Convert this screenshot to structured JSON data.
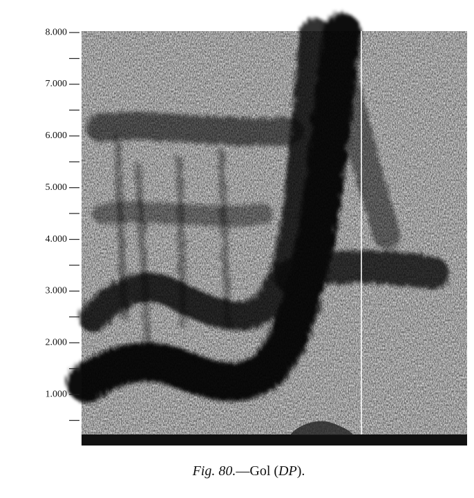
{
  "figure": {
    "yticks": [
      {
        "value": 8000,
        "label": "8.000"
      },
      {
        "value": 7000,
        "label": "7.000"
      },
      {
        "value": 6000,
        "label": "6.000"
      },
      {
        "value": 5000,
        "label": "5.000"
      },
      {
        "value": 4000,
        "label": "4.000"
      },
      {
        "value": 3000,
        "label": "3.000"
      },
      {
        "value": 2000,
        "label": "2.000"
      },
      {
        "value": 1000,
        "label": "1.000"
      }
    ],
    "caption": {
      "label": "Fig. 80.",
      "text": "—Gol (",
      "speaker": "DP",
      "end": ")."
    }
  }
}
